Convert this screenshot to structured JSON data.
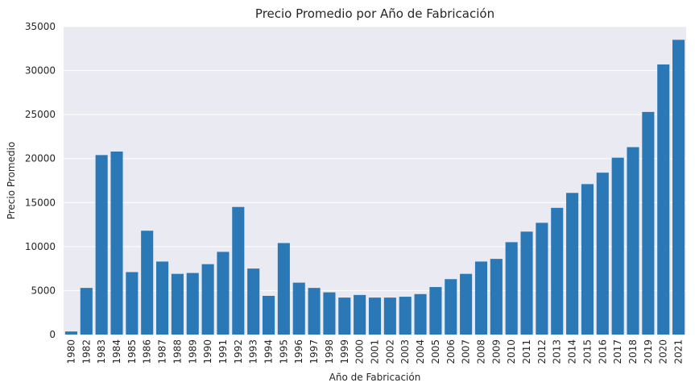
{
  "chart_data": {
    "type": "bar",
    "title": "Precio Promedio por Año de Fabricación",
    "xlabel": "Año de Fabricación",
    "ylabel": "Precio Promedio",
    "ylim": [
      0,
      35000
    ],
    "yticks": [
      0,
      5000,
      10000,
      15000,
      20000,
      25000,
      30000,
      35000
    ],
    "grid": true,
    "bar_color": "#2a78b5",
    "background_color": "#eaeaf2",
    "categories": [
      "1980",
      "1982",
      "1983",
      "1984",
      "1985",
      "1986",
      "1987",
      "1988",
      "1989",
      "1990",
      "1991",
      "1992",
      "1993",
      "1994",
      "1995",
      "1996",
      "1997",
      "1998",
      "1999",
      "2000",
      "2001",
      "2002",
      "2003",
      "2004",
      "2005",
      "2006",
      "2007",
      "2008",
      "2009",
      "2010",
      "2011",
      "2012",
      "2013",
      "2014",
      "2015",
      "2016",
      "2017",
      "2018",
      "2019",
      "2020",
      "2021"
    ],
    "values": [
      350,
      5300,
      20400,
      20800,
      7100,
      11800,
      8300,
      6900,
      7000,
      8000,
      9400,
      14500,
      7500,
      4400,
      10400,
      5900,
      5300,
      4800,
      4200,
      4500,
      4200,
      4200,
      4300,
      4600,
      5400,
      6300,
      6900,
      8300,
      8600,
      10500,
      11700,
      12700,
      14400,
      16100,
      17100,
      18400,
      20100,
      21300,
      25300,
      30700,
      33500
    ]
  }
}
